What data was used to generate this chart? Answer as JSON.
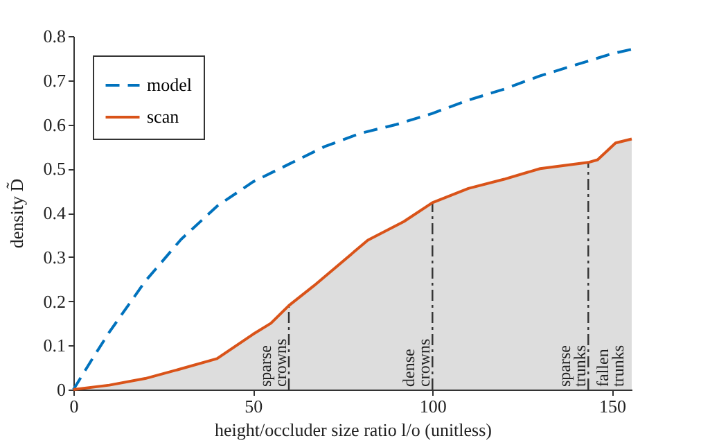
{
  "chart_data": {
    "type": "line",
    "xlabel": "height/occluder size ratio l/o (unitless)",
    "ylabel": "density D̃",
    "xlim": [
      0,
      155.5
    ],
    "ylim": [
      0,
      0.8
    ],
    "xticks": [
      0,
      50,
      100,
      150
    ],
    "yticks": [
      0,
      0.1,
      0.2,
      0.3,
      0.4,
      0.5,
      0.6,
      0.7,
      0.8
    ],
    "grid": false,
    "legend": "top left",
    "series": [
      {
        "name": "model",
        "color": "#0072bd",
        "line_style": "dashed",
        "x": [
          0,
          5,
          10,
          20,
          30,
          40,
          50,
          60,
          70,
          80,
          90,
          100,
          110,
          120,
          130,
          140,
          150,
          155.5
        ],
        "values": [
          0,
          0.066,
          0.13,
          0.245,
          0.34,
          0.415,
          0.47,
          0.51,
          0.55,
          0.58,
          0.6,
          0.625,
          0.655,
          0.68,
          0.71,
          0.735,
          0.76,
          0.77
        ]
      },
      {
        "name": "scan",
        "type": "area",
        "color": "#d95319",
        "line_style": "solid",
        "x": [
          0,
          10,
          20,
          30,
          40,
          50,
          55,
          60,
          67,
          82,
          92,
          100,
          110,
          120,
          130,
          143.4,
          146,
          151,
          155.5
        ],
        "values": [
          0,
          0.01,
          0.025,
          0.047,
          0.07,
          0.125,
          0.15,
          0.19,
          0.235,
          0.338,
          0.38,
          0.423,
          0.455,
          0.476,
          0.5,
          0.514,
          0.52,
          0.558,
          0.567
        ]
      }
    ],
    "ref_lines": [
      {
        "axis": "x",
        "value": 60,
        "label": "sparse crowns",
        "line_style": "dashdot",
        "color": "#333333"
      },
      {
        "axis": "x",
        "value": 100,
        "label": "dense crowns",
        "line_style": "dashdot",
        "color": "#333333"
      },
      {
        "axis": "x",
        "value": 143.4,
        "label": "sparse trunks",
        "line_style": "dashdot",
        "color": "#333333"
      }
    ],
    "annotations": [
      "fallen trunks"
    ]
  }
}
